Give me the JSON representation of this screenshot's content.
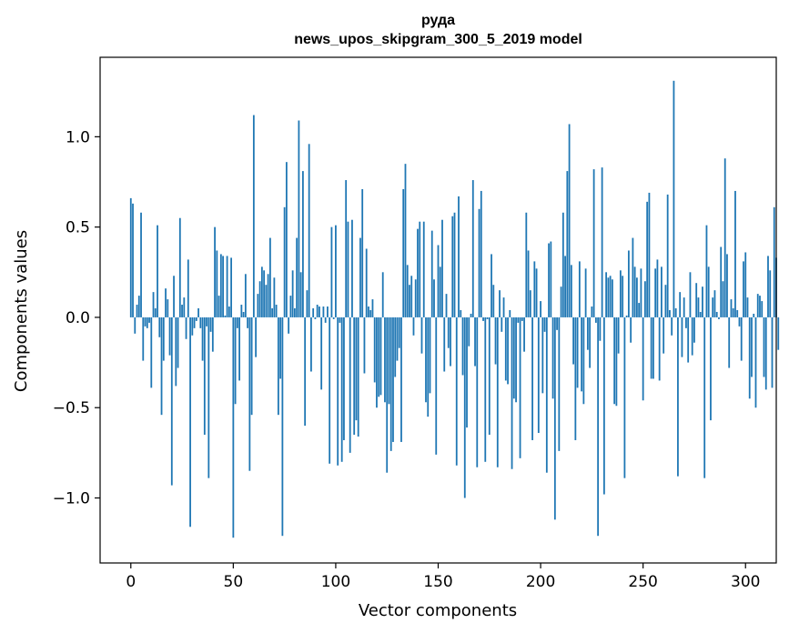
{
  "chart_data": {
    "type": "bar",
    "title": "руда",
    "subtitle": "news_upos_skipgram_300_5_2019 model",
    "xlabel": "Vector components",
    "ylabel": "Components values",
    "xlim": [
      -15,
      315
    ],
    "ylim": [
      -1.36,
      1.44
    ],
    "xticks": [
      0,
      50,
      100,
      150,
      200,
      250,
      300
    ],
    "xtick_labels": [
      "0",
      "50",
      "100",
      "150",
      "200",
      "250",
      "300"
    ],
    "yticks": [
      -1.0,
      -0.5,
      0.0,
      0.5,
      1.0
    ],
    "ytick_labels": [
      "−1.0",
      "−0.5",
      "0.0",
      "0.5",
      "1.0"
    ],
    "bar_color": "#1f77b4",
    "values": [
      0.66,
      0.63,
      -0.09,
      0.07,
      0.12,
      0.58,
      -0.24,
      -0.05,
      -0.06,
      -0.03,
      -0.39,
      0.14,
      0.05,
      0.51,
      -0.11,
      -0.54,
      -0.24,
      0.16,
      0.1,
      -0.21,
      -0.93,
      0.23,
      -0.38,
      -0.28,
      0.55,
      0.07,
      0.11,
      -0.12,
      0.32,
      -1.16,
      -0.1,
      -0.06,
      -0.02,
      0.05,
      -0.06,
      -0.24,
      -0.65,
      -0.05,
      -0.89,
      -0.08,
      -0.19,
      0.5,
      0.37,
      0.12,
      0.35,
      0.34,
      0.01,
      0.34,
      0.06,
      0.33,
      -1.22,
      -0.48,
      -0.06,
      -0.35,
      0.07,
      0.03,
      0.24,
      -0.06,
      -0.85,
      -0.54,
      1.12,
      -0.22,
      0.13,
      0.2,
      0.28,
      0.26,
      0.18,
      0.24,
      0.44,
      0.05,
      0.22,
      0.07,
      -0.54,
      -0.34,
      -1.21,
      0.61,
      0.86,
      -0.09,
      0.12,
      0.26,
      0.05,
      0.44,
      1.09,
      0.25,
      0.81,
      -0.6,
      0.15,
      0.96,
      -0.3,
      0.05,
      -0.01,
      0.07,
      0.06,
      -0.4,
      0.06,
      -0.03,
      0.06,
      -0.81,
      0.5,
      -0.01,
      0.51,
      -0.82,
      -0.03,
      -0.8,
      -0.68,
      0.76,
      0.53,
      -0.75,
      0.54,
      -0.65,
      -0.57,
      -0.66,
      0.44,
      0.71,
      -0.31,
      0.38,
      0.06,
      0.04,
      0.1,
      -0.36,
      -0.5,
      -0.44,
      -0.43,
      0.25,
      -0.47,
      -0.86,
      -0.48,
      -0.74,
      -0.69,
      -0.33,
      -0.24,
      -0.17,
      -0.69,
      0.71,
      0.85,
      0.29,
      0.18,
      0.23,
      -0.1,
      0.21,
      0.49,
      0.53,
      -0.2,
      0.53,
      -0.47,
      -0.55,
      -0.42,
      0.48,
      0.21,
      -0.76,
      0.4,
      0.28,
      0.54,
      -0.3,
      0.13,
      -0.17,
      -0.27,
      0.56,
      0.58,
      -0.82,
      0.67,
      0.04,
      -0.32,
      -1.0,
      -0.61,
      -0.16,
      0.02,
      0.76,
      -0.27,
      -0.83,
      0.6,
      0.7,
      -0.02,
      -0.8,
      -0.01,
      -0.65,
      0.35,
      0.18,
      -0.26,
      -0.83,
      0.15,
      -0.08,
      0.11,
      -0.35,
      -0.37,
      0.04,
      -0.84,
      -0.45,
      -0.47,
      -0.03,
      -0.78,
      -0.02,
      -0.19,
      0.58,
      0.37,
      0.15,
      -0.68,
      0.31,
      0.27,
      -0.64,
      0.09,
      -0.42,
      -0.08,
      -0.86,
      0.41,
      0.42,
      -0.45,
      -1.12,
      -0.07,
      -0.74,
      0.17,
      0.58,
      0.34,
      0.81,
      1.07,
      0.29,
      -0.26,
      -0.68,
      -0.39,
      0.31,
      -0.41,
      -0.48,
      0.27,
      -0.18,
      -0.28,
      0.06,
      0.82,
      -0.03,
      -1.21,
      -0.13,
      0.83,
      -0.98,
      0.25,
      0.22,
      0.23,
      0.21,
      -0.48,
      -0.49,
      -0.2,
      0.26,
      0.23,
      -0.89,
      0.01,
      0.37,
      -0.14,
      0.44,
      0.28,
      0.22,
      0.08,
      0.27,
      -0.46,
      0.2,
      0.64,
      0.69,
      -0.34,
      -0.34,
      0.27,
      0.32,
      -0.35,
      0.28,
      -0.2,
      0.18,
      0.68,
      0.04,
      -0.1,
      1.31,
      0.05,
      -0.88,
      0.14,
      -0.22,
      0.11,
      -0.06,
      -0.25,
      0.25,
      -0.21,
      -0.14,
      0.19,
      0.11,
      0.03,
      0.17,
      -0.89,
      0.51,
      0.28,
      -0.57,
      0.11,
      0.15,
      0.03,
      -0.01,
      0.39,
      0.2,
      0.88,
      0.35,
      -0.28,
      0.1,
      0.05,
      0.7,
      0.04,
      -0.05,
      -0.24,
      0.31,
      0.36,
      0.11,
      -0.45,
      -0.33,
      0.02,
      -0.5,
      0.13,
      0.12,
      0.09,
      -0.33,
      -0.4,
      0.34,
      0.26,
      -0.39,
      0.61,
      0.33,
      -0.18
    ]
  }
}
